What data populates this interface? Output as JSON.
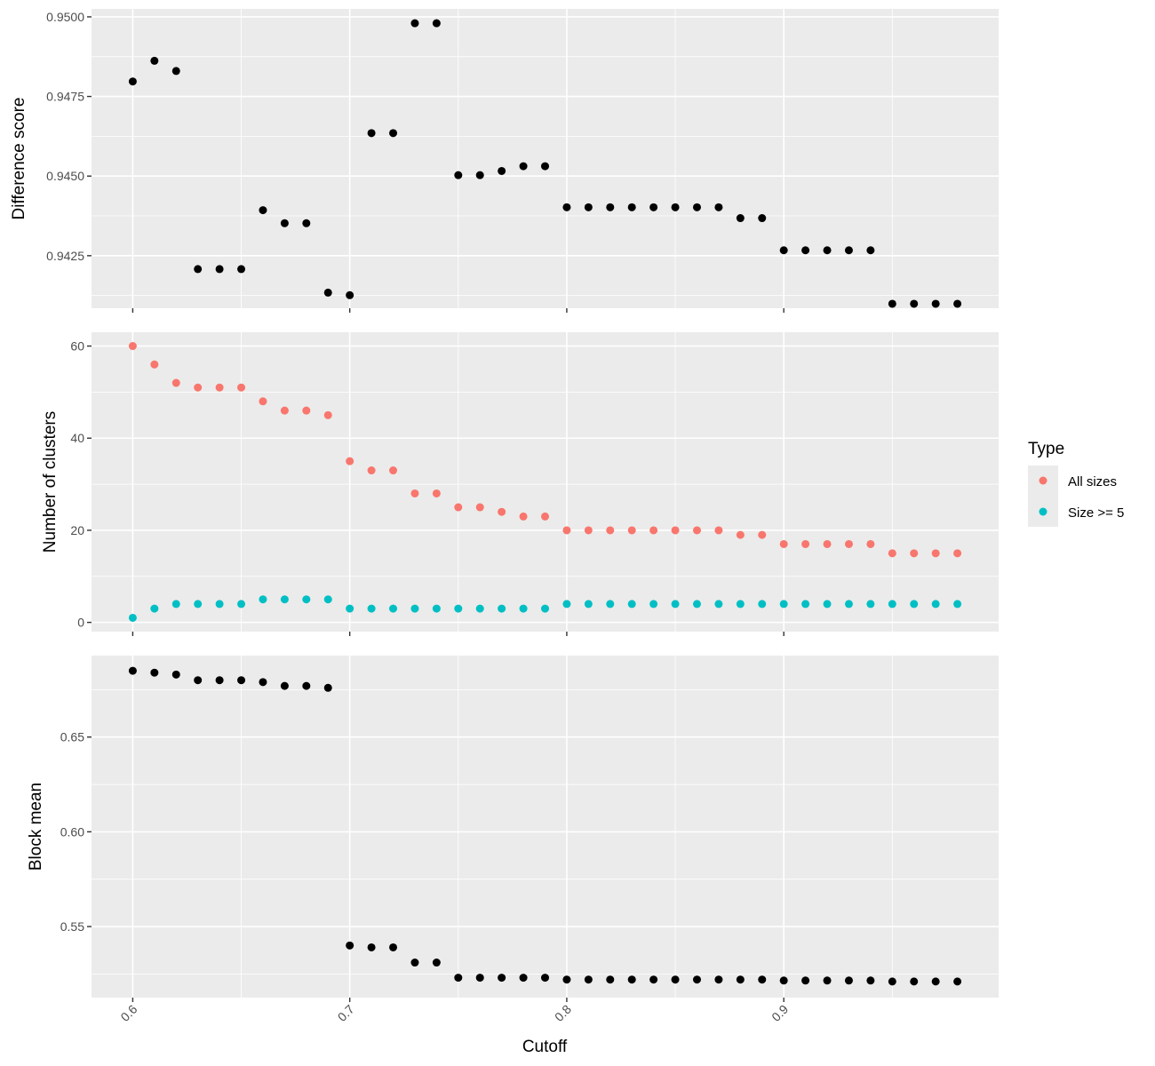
{
  "chart_data": {
    "type": "scatter",
    "x_label": "Cutoff",
    "x_range": [
      0.581,
      0.999
    ],
    "x_ticks": [
      {
        "value": 0.6,
        "label": "0.6"
      },
      {
        "value": 0.7,
        "label": "0.7"
      },
      {
        "value": 0.8,
        "label": "0.8"
      },
      {
        "value": 0.9,
        "label": "0.9"
      }
    ],
    "x": [
      0.6,
      0.61,
      0.62,
      0.63,
      0.64,
      0.65,
      0.66,
      0.67,
      0.68,
      0.69,
      0.7,
      0.71,
      0.72,
      0.73,
      0.74,
      0.75,
      0.76,
      0.77,
      0.78,
      0.79,
      0.8,
      0.81,
      0.82,
      0.83,
      0.84,
      0.85,
      0.86,
      0.87,
      0.88,
      0.89,
      0.9,
      0.91,
      0.92,
      0.93,
      0.94,
      0.95,
      0.96,
      0.97,
      0.98
    ],
    "background_color": "#ebebeb",
    "grid": true,
    "legend_position": "right",
    "legend": {
      "title": "Type",
      "items": [
        {
          "label": "All sizes",
          "color": "#f8766d"
        },
        {
          "label": "Size >= 5",
          "color": "#00bfc4"
        }
      ]
    },
    "panels": [
      {
        "ylabel": "Difference score",
        "ylim": [
          0.94085,
          0.95025
        ],
        "y_ticks": [
          {
            "value": 0.9425,
            "label": "0.9425"
          },
          {
            "value": 0.945,
            "label": "0.9450"
          },
          {
            "value": 0.9475,
            "label": "0.9475"
          },
          {
            "value": 0.95,
            "label": "0.9500"
          }
        ],
        "series": [
          {
            "color": "#000000",
            "values": [
              0.94797,
              0.94862,
              0.9483,
              0.94208,
              0.94208,
              0.94208,
              0.94393,
              0.94352,
              0.94352,
              0.94134,
              0.94126,
              0.94635,
              0.94635,
              0.9498,
              0.9498,
              0.94503,
              0.94503,
              0.94516,
              0.94531,
              0.94531,
              0.94402,
              0.94402,
              0.94402,
              0.94402,
              0.94402,
              0.94402,
              0.94402,
              0.94402,
              0.94368,
              0.94368,
              0.94267,
              0.94267,
              0.94267,
              0.94267,
              0.94267,
              0.94099,
              0.94099,
              0.94099,
              0.94099
            ]
          }
        ]
      },
      {
        "ylabel": "Number of clusters",
        "ylim": [
          -2,
          63
        ],
        "y_ticks": [
          {
            "value": 0,
            "label": "0"
          },
          {
            "value": 20,
            "label": "20"
          },
          {
            "value": 40,
            "label": "40"
          },
          {
            "value": 60,
            "label": "60"
          }
        ],
        "series": [
          {
            "name": "All sizes",
            "color": "#f8766d",
            "values": [
              60,
              56,
              52,
              51,
              51,
              51,
              48,
              46,
              46,
              45,
              35,
              33,
              33,
              28,
              28,
              25,
              25,
              24,
              23,
              23,
              20,
              20,
              20,
              20,
              20,
              20,
              20,
              20,
              19,
              19,
              17,
              17,
              17,
              17,
              17,
              15,
              15,
              15,
              15
            ]
          },
          {
            "name": "Size >= 5",
            "color": "#00bfc4",
            "values": [
              1,
              3,
              4,
              4,
              4,
              4,
              5,
              5,
              5,
              5,
              3,
              3,
              3,
              3,
              3,
              3,
              3,
              3,
              3,
              3,
              4,
              4,
              4,
              4,
              4,
              4,
              4,
              4,
              4,
              4,
              4,
              4,
              4,
              4,
              4,
              4,
              4,
              4,
              4
            ]
          }
        ]
      },
      {
        "ylabel": "Block mean",
        "ylim": [
          0.5125,
          0.693
        ],
        "y_ticks": [
          {
            "value": 0.55,
            "label": "0.55"
          },
          {
            "value": 0.6,
            "label": "0.60"
          },
          {
            "value": 0.65,
            "label": "0.65"
          }
        ],
        "series": [
          {
            "color": "#000000",
            "values": [
              0.685,
              0.684,
              0.683,
              0.68,
              0.68,
              0.68,
              0.679,
              0.677,
              0.677,
              0.676,
              0.54,
              0.539,
              0.539,
              0.531,
              0.531,
              0.523,
              0.523,
              0.523,
              0.523,
              0.523,
              0.522,
              0.522,
              0.522,
              0.522,
              0.522,
              0.522,
              0.522,
              0.522,
              0.522,
              0.522,
              0.5215,
              0.5215,
              0.5215,
              0.5215,
              0.5215,
              0.521,
              0.521,
              0.521,
              0.521
            ]
          }
        ]
      }
    ]
  }
}
